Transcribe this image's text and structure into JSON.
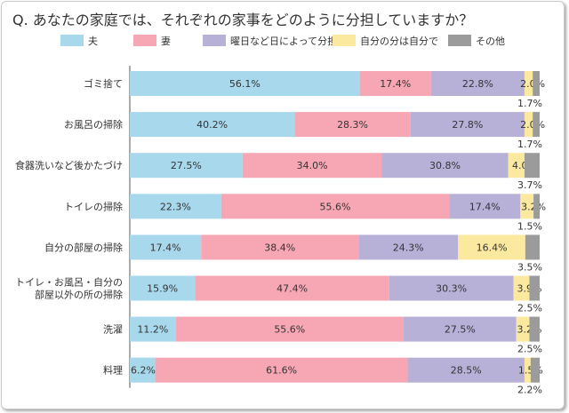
{
  "chart_data": {
    "type": "bar",
    "orientation": "horizontal",
    "stacked": true,
    "percent_stacked": true,
    "title": "Q. あなたの家庭では、それぞれの家事をどのように分担していますか？",
    "xlabel": "",
    "ylabel": "",
    "xlim": [
      0,
      100
    ],
    "grid": false,
    "legend_position": "top",
    "categories": [
      "ゴミ捨て",
      "お風呂の掃除",
      "食器洗いなど後かたづけ",
      "トイレの掃除",
      "自分の部屋の掃除",
      "トイレ・お風呂・自分の部屋以外の所の掃除",
      "洗濯",
      "料理"
    ],
    "category_lines": [
      [
        "ゴミ捨て"
      ],
      [
        "お風呂の掃除"
      ],
      [
        "食器洗いなど後かたづけ"
      ],
      [
        "トイレの掃除"
      ],
      [
        "自分の部屋の掃除"
      ],
      [
        "トイレ・お風呂・自分の",
        "部屋以外の所の掃除"
      ],
      [
        "洗濯"
      ],
      [
        "料理"
      ]
    ],
    "series": [
      {
        "name": "夫",
        "color": "#a8d8ec",
        "values": [
          56.1,
          40.2,
          27.5,
          22.3,
          17.4,
          15.9,
          11.2,
          6.2
        ]
      },
      {
        "name": "妻",
        "color": "#f7a6b4",
        "values": [
          17.4,
          28.3,
          34.0,
          55.6,
          38.4,
          47.4,
          55.6,
          61.6
        ]
      },
      {
        "name": "曜日など日によって分担",
        "color": "#b7b1d8",
        "values": [
          22.8,
          27.8,
          30.8,
          17.4,
          24.3,
          30.3,
          27.5,
          28.5
        ]
      },
      {
        "name": "自分の分は自分で",
        "color": "#fbe9a0",
        "values": [
          2.0,
          2.0,
          4.0,
          3.2,
          16.4,
          3.9,
          3.2,
          1.5
        ]
      },
      {
        "name": "その他",
        "color": "#9b9b9b",
        "values": [
          1.7,
          1.7,
          3.7,
          1.5,
          3.5,
          2.5,
          2.5,
          2.2
        ]
      }
    ],
    "value_labels": [
      [
        "56.1%",
        "17.4%",
        "22.8%",
        "2.0%",
        "1.7%"
      ],
      [
        "40.2%",
        "28.3%",
        "27.8%",
        "2.0%",
        "1.7%"
      ],
      [
        "27.5%",
        "34.0%",
        "30.8%",
        "4.0%",
        "3.7%"
      ],
      [
        "22.3%",
        "55.6%",
        "17.4%",
        "3.2%",
        "1.5%"
      ],
      [
        "17.4%",
        "38.4%",
        "24.3%",
        "16.4%",
        "3.5%"
      ],
      [
        "15.9%",
        "47.4%",
        "30.3%",
        "3.9%",
        "2.5%"
      ],
      [
        "11.2%",
        "55.6%",
        "27.5%",
        "3.2%",
        "2.5%"
      ],
      [
        "6.2%",
        "61.6%",
        "28.5%",
        "1.5%",
        "2.2%"
      ]
    ]
  }
}
